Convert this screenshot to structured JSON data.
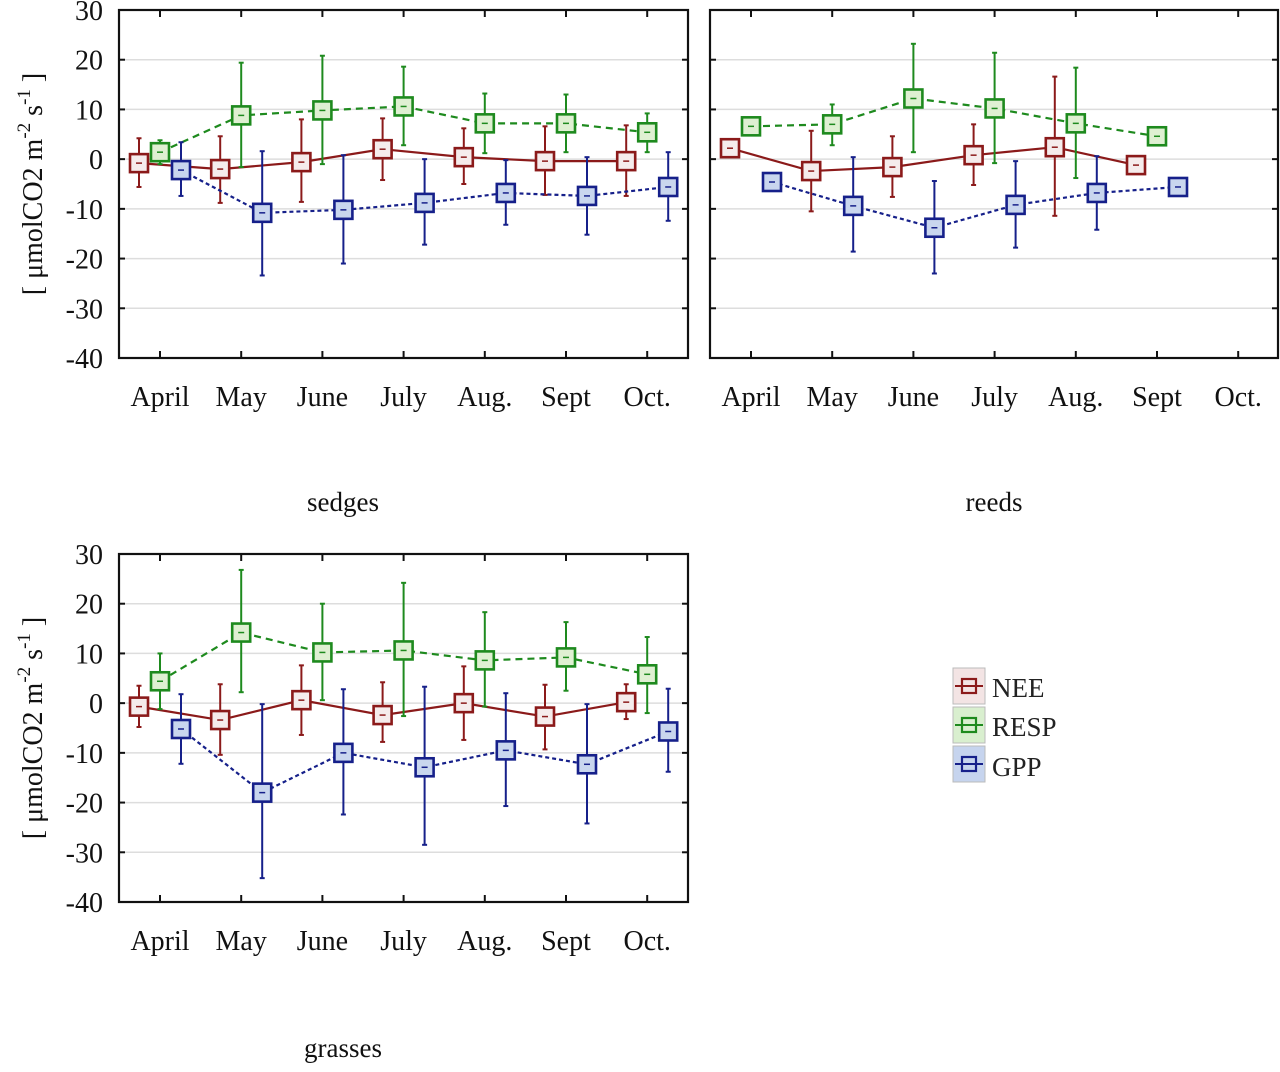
{
  "chart_data": [
    {
      "type": "line",
      "title": "sedges",
      "xlabel": "",
      "ylabel": "[ μmolCO2 m-2 s-1 ]",
      "ylabel_parts": {
        "open": "[ μmolCO2 m",
        "exp1": "-2",
        "mid": " s",
        "exp2": "-1",
        "close": " ]"
      },
      "show_ylabel": true,
      "show_ytick_labels": true,
      "ylim": [
        -40,
        30
      ],
      "yticks": [
        30,
        20,
        10,
        0,
        -10,
        -20,
        -30,
        -40
      ],
      "categories": [
        "April",
        "May",
        "June",
        "July",
        "Aug.",
        "Sept",
        "Oct."
      ],
      "grid": true,
      "series": [
        {
          "name": "NEE",
          "values": [
            -0.8,
            -2.0,
            -0.6,
            2.0,
            0.4,
            -0.4,
            -0.4
          ],
          "err_high": [
            4.2,
            4.6,
            8.0,
            8.2,
            6.2,
            6.6,
            6.8
          ],
          "err_low": [
            -5.6,
            -8.8,
            -8.6,
            -4.2,
            -5.0,
            -7.2,
            -7.4
          ]
        },
        {
          "name": "RESP",
          "values": [
            1.4,
            8.8,
            9.8,
            10.6,
            7.2,
            7.2,
            5.4
          ],
          "err_high": [
            3.8,
            19.4,
            20.8,
            18.6,
            13.2,
            13.0,
            9.2
          ],
          "err_low": [
            -1.0,
            -1.6,
            -1.0,
            2.8,
            1.2,
            1.4,
            1.4
          ]
        },
        {
          "name": "GPP",
          "values": [
            -2.2,
            -10.8,
            -10.2,
            -8.8,
            -6.8,
            -7.4,
            -5.6
          ],
          "err_high": [
            3.4,
            1.6,
            0.8,
            0.0,
            -0.2,
            0.4,
            1.4
          ],
          "err_low": [
            -7.4,
            -23.4,
            -21.0,
            -17.2,
            -13.2,
            -15.2,
            -12.4
          ]
        }
      ]
    },
    {
      "type": "line",
      "title": "reeds",
      "xlabel": "",
      "ylabel": "",
      "show_ylabel": false,
      "show_ytick_labels": false,
      "ylim": [
        -40,
        30
      ],
      "yticks": [
        30,
        20,
        10,
        0,
        -10,
        -20,
        -30,
        -40
      ],
      "categories": [
        "April",
        "May",
        "June",
        "July",
        "Aug.",
        "Sept",
        "Oct."
      ],
      "grid": true,
      "series": [
        {
          "name": "NEE",
          "values": [
            2.2,
            -2.4,
            -1.6,
            0.8,
            2.4,
            -1.2,
            null
          ],
          "err_high": [
            null,
            5.7,
            4.6,
            7.0,
            16.6,
            null,
            null
          ],
          "err_low": [
            null,
            -10.5,
            -7.6,
            -5.2,
            -11.4,
            null,
            null
          ]
        },
        {
          "name": "RESP",
          "values": [
            6.6,
            7.0,
            12.2,
            10.2,
            7.2,
            4.6,
            null
          ],
          "err_high": [
            null,
            11.0,
            23.2,
            21.4,
            18.4,
            null,
            null
          ],
          "err_low": [
            null,
            2.8,
            1.4,
            -0.8,
            -3.8,
            null,
            null
          ]
        },
        {
          "name": "GPP",
          "values": [
            -4.6,
            -9.4,
            -13.8,
            -9.2,
            -6.8,
            -5.6,
            null
          ],
          "err_high": [
            null,
            0.4,
            -4.4,
            -0.4,
            0.6,
            null,
            null
          ],
          "err_low": [
            null,
            -18.6,
            -23.0,
            -17.8,
            -14.2,
            null,
            null
          ]
        }
      ]
    },
    {
      "type": "line",
      "title": "grasses",
      "xlabel": "",
      "ylabel": "[ μmolCO2 m-2 s-1 ]",
      "ylabel_parts": {
        "open": "[ μmolCO2 m",
        "exp1": "-2",
        "mid": " s",
        "exp2": "-1",
        "close": " ]"
      },
      "show_ylabel": true,
      "show_ytick_labels": true,
      "ylim": [
        -40,
        30
      ],
      "yticks": [
        30,
        20,
        10,
        0,
        -10,
        -20,
        -30,
        -40
      ],
      "categories": [
        "April",
        "May",
        "June",
        "July",
        "Aug.",
        "Sept",
        "Oct."
      ],
      "grid": true,
      "series": [
        {
          "name": "NEE",
          "values": [
            -0.7,
            -3.4,
            0.6,
            -2.4,
            0.0,
            -2.7,
            0.2
          ],
          "err_high": [
            3.5,
            3.8,
            7.6,
            4.2,
            7.4,
            3.7,
            3.8
          ],
          "err_low": [
            -4.8,
            -10.4,
            -6.4,
            -7.8,
            -7.4,
            -9.3,
            -3.2
          ]
        },
        {
          "name": "RESP",
          "values": [
            4.4,
            14.2,
            10.2,
            10.6,
            8.6,
            9.2,
            5.8
          ],
          "err_high": [
            10.0,
            26.8,
            20.0,
            24.2,
            18.3,
            16.3,
            13.3
          ],
          "err_low": [
            -1.2,
            2.2,
            0.6,
            -2.6,
            -0.7,
            2.5,
            -2.0
          ]
        },
        {
          "name": "GPP",
          "values": [
            -5.2,
            -18.0,
            -10.0,
            -12.9,
            -9.5,
            -12.3,
            -5.7
          ],
          "err_high": [
            1.8,
            -0.2,
            2.8,
            3.3,
            2.0,
            -0.2,
            2.9
          ],
          "err_low": [
            -12.2,
            -35.2,
            -22.4,
            -28.5,
            -20.7,
            -24.2,
            -13.8
          ]
        }
      ]
    }
  ],
  "legend": {
    "placement": "right of grasses panel",
    "items": [
      {
        "label": "NEE",
        "color": "#8b1a1a",
        "fill": "#f3e4e4",
        "line": "solid"
      },
      {
        "label": "RESP",
        "color": "#1e8a1e",
        "fill": "#d9efcf",
        "line": "dashed"
      },
      {
        "label": "GPP",
        "color": "#16208a",
        "fill": "#c6d4ee",
        "line": "dotted"
      }
    ]
  },
  "colors": {
    "NEE": "#8b1a1a",
    "RESP": "#1e8a1e",
    "GPP": "#16208a",
    "NEE_fill": "#f5ecec",
    "RESP_fill": "#dff0d2",
    "GPP_fill": "#c9d6ee",
    "grid": "#dddddd",
    "frame": "#111111"
  }
}
